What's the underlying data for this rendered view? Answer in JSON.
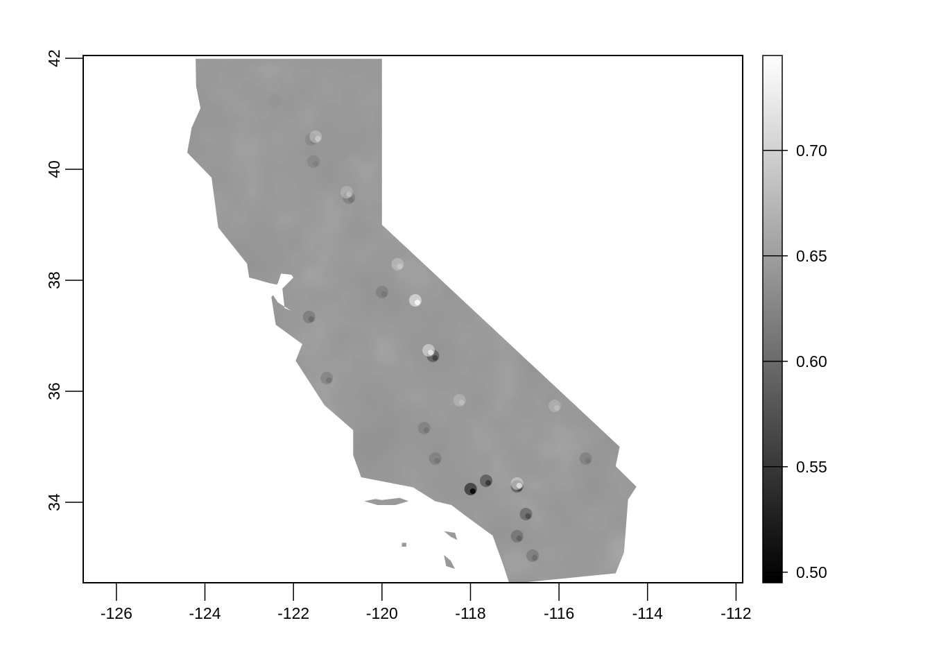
{
  "map": {
    "type": "raster",
    "colormap": "grayscale",
    "colors": {
      "low": "#000000",
      "high": "#ffffff",
      "land_base": "#999999",
      "axis": "#000000",
      "background": "#ffffff"
    },
    "x_axis": {
      "range": [
        -126.75,
        -111.85
      ],
      "ticks": [
        -126,
        -124,
        -122,
        -120,
        -118,
        -116,
        -114,
        -112
      ],
      "labels": [
        "-126",
        "-124",
        "-122",
        "-120",
        "-118",
        "-116",
        "-114",
        "-112"
      ]
    },
    "y_axis": {
      "range": [
        32.55,
        42.05
      ],
      "ticks": [
        34,
        36,
        38,
        40,
        42
      ],
      "labels": [
        "34",
        "36",
        "38",
        "40",
        "42"
      ]
    },
    "legend": {
      "placement": "right",
      "range": [
        0.495,
        0.745
      ],
      "ticks": [
        0.5,
        0.55,
        0.6,
        0.65,
        0.7
      ],
      "labels": [
        "0.50",
        "0.55",
        "0.60",
        "0.65",
        "0.70"
      ]
    },
    "region_outline_lonlat": [
      [
        -124.21,
        41.99
      ],
      [
        -120.0,
        41.99
      ],
      [
        -120.0,
        39.0
      ],
      [
        -114.63,
        35.0
      ],
      [
        -114.72,
        34.65
      ],
      [
        -114.25,
        34.28
      ],
      [
        -114.44,
        34.05
      ],
      [
        -114.53,
        33.1
      ],
      [
        -114.72,
        32.72
      ],
      [
        -117.12,
        32.53
      ],
      [
        -117.25,
        32.85
      ],
      [
        -117.5,
        33.4
      ],
      [
        -118.1,
        33.75
      ],
      [
        -118.43,
        33.95
      ],
      [
        -118.8,
        34.02
      ],
      [
        -119.3,
        34.27
      ],
      [
        -120.47,
        34.45
      ],
      [
        -120.65,
        34.85
      ],
      [
        -120.65,
        35.3
      ],
      [
        -121.3,
        35.75
      ],
      [
        -121.95,
        36.55
      ],
      [
        -121.8,
        36.85
      ],
      [
        -122.4,
        37.2
      ],
      [
        -122.5,
        37.7
      ],
      [
        -122.25,
        37.9
      ],
      [
        -122.55,
        37.95
      ],
      [
        -123.0,
        38.05
      ],
      [
        -123.05,
        38.3
      ],
      [
        -123.7,
        38.95
      ],
      [
        -123.85,
        39.85
      ],
      [
        -124.4,
        40.3
      ],
      [
        -124.3,
        40.75
      ],
      [
        -124.1,
        41.1
      ],
      [
        -124.2,
        41.5
      ]
    ],
    "bay_lonlat": [
      [
        -122.5,
        37.78
      ],
      [
        -122.35,
        37.95
      ],
      [
        -122.28,
        38.12
      ],
      [
        -122.05,
        38.1
      ],
      [
        -122.0,
        38.05
      ],
      [
        -122.25,
        37.85
      ],
      [
        -122.2,
        37.5
      ],
      [
        -122.05,
        37.45
      ],
      [
        -122.35,
        37.6
      ]
    ],
    "islands_lonlat": [
      [
        [
          -120.4,
          34.02
        ],
        [
          -120.15,
          34.06
        ],
        [
          -120.0,
          34.04
        ],
        [
          -119.6,
          34.08
        ],
        [
          -119.4,
          34.02
        ],
        [
          -119.7,
          33.95
        ],
        [
          -120.1,
          33.95
        ]
      ],
      [
        [
          -118.6,
          33.48
        ],
        [
          -118.35,
          33.45
        ],
        [
          -118.3,
          33.32
        ],
        [
          -118.45,
          33.38
        ]
      ],
      [
        [
          -118.6,
          33.05
        ],
        [
          -118.45,
          32.95
        ],
        [
          -118.35,
          32.8
        ],
        [
          -118.55,
          32.85
        ]
      ],
      [
        [
          -119.55,
          33.27
        ],
        [
          -119.45,
          33.27
        ],
        [
          -119.45,
          33.2
        ],
        [
          -119.55,
          33.2
        ]
      ]
    ],
    "hotspots": [
      {
        "lon": -119.2,
        "lat": 37.6,
        "value": 0.735
      },
      {
        "lon": -118.8,
        "lat": 36.6,
        "value": 0.56
      },
      {
        "lon": -118.9,
        "lat": 36.7,
        "value": 0.72
      },
      {
        "lon": -117.95,
        "lat": 34.2,
        "value": 0.505
      },
      {
        "lon": -117.6,
        "lat": 34.35,
        "value": 0.55
      },
      {
        "lon": -116.9,
        "lat": 34.25,
        "value": 0.56
      },
      {
        "lon": -116.9,
        "lat": 34.3,
        "value": 0.71
      },
      {
        "lon": -116.7,
        "lat": 33.75,
        "value": 0.57
      },
      {
        "lon": -116.9,
        "lat": 33.35,
        "value": 0.59
      },
      {
        "lon": -116.55,
        "lat": 33.0,
        "value": 0.6
      },
      {
        "lon": -121.6,
        "lat": 37.3,
        "value": 0.6
      },
      {
        "lon": -121.55,
        "lat": 40.5,
        "value": 0.62
      },
      {
        "lon": -121.5,
        "lat": 40.1,
        "value": 0.62
      },
      {
        "lon": -120.7,
        "lat": 39.45,
        "value": 0.61
      },
      {
        "lon": -120.75,
        "lat": 39.55,
        "value": 0.68
      },
      {
        "lon": -119.6,
        "lat": 38.25,
        "value": 0.69
      },
      {
        "lon": -119.95,
        "lat": 37.75,
        "value": 0.61
      },
      {
        "lon": -118.75,
        "lat": 34.75,
        "value": 0.61
      },
      {
        "lon": -121.45,
        "lat": 40.55,
        "value": 0.69
      },
      {
        "lon": -116.05,
        "lat": 35.7,
        "value": 0.68
      },
      {
        "lon": -115.35,
        "lat": 34.75,
        "value": 0.61
      },
      {
        "lon": -122.35,
        "lat": 41.2,
        "value": 0.64
      },
      {
        "lon": -121.2,
        "lat": 36.2,
        "value": 0.61
      },
      {
        "lon": -119.0,
        "lat": 35.3,
        "value": 0.61
      },
      {
        "lon": -118.2,
        "lat": 35.8,
        "value": 0.68
      }
    ]
  }
}
